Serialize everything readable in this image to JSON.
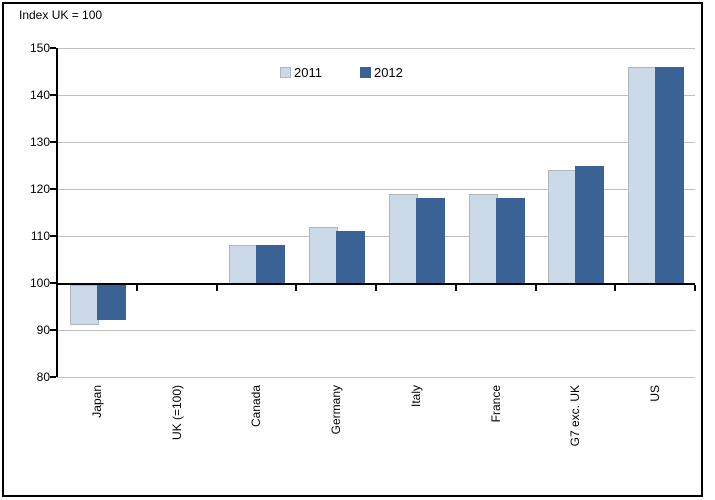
{
  "chart_data": {
    "type": "bar",
    "title": "Index UK = 100",
    "categories": [
      "Japan",
      "UK (=100)",
      "Canada",
      "Germany",
      "Italy",
      "France",
      "G7 exc. UK",
      "US"
    ],
    "series": [
      {
        "name": "2011",
        "color": "#CBD9E8",
        "border_color": "#AFB6BC",
        "values": [
          92,
          100,
          108,
          112,
          119,
          119,
          124,
          146
        ]
      },
      {
        "name": "2012",
        "color": "#3A6294",
        "border_color": "#3A6294",
        "values": [
          93,
          100,
          108,
          111,
          118,
          118,
          125,
          146
        ]
      }
    ],
    "ylim": [
      80,
      150
    ],
    "yticks": [
      80,
      90,
      100,
      110,
      120,
      130,
      140,
      150
    ],
    "baseline": 100,
    "grid": true,
    "gridline_color": "#C0C0C0",
    "axis_color": "#000000",
    "legend_position": "top-center",
    "x_labels_rotated_degrees": 90
  }
}
